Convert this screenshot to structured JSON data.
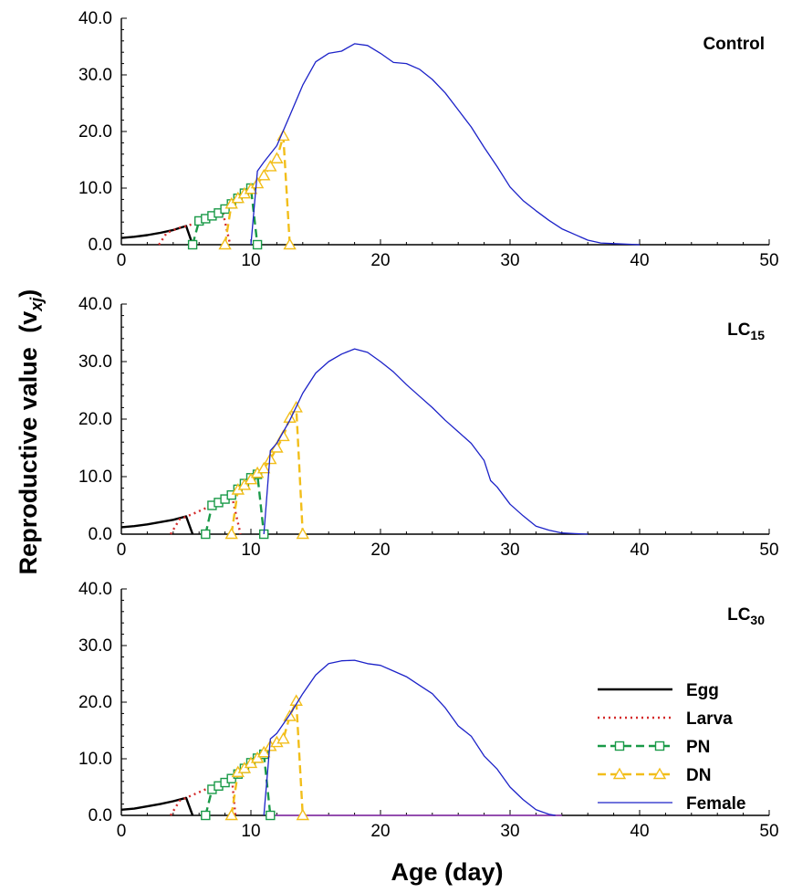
{
  "chart_data": {
    "type": "line",
    "ylabel": "Reproductive value",
    "ylabel_var": "(v",
    "ylabel_sub": "xj",
    "ylabel_close": ")",
    "xlabel": "Age (day)",
    "xlim": [
      0,
      50
    ],
    "ylim": [
      0,
      40
    ],
    "xticks": [
      "0",
      "10",
      "20",
      "30",
      "40",
      "50"
    ],
    "yticks": [
      "0.0",
      "10.0",
      "20.0",
      "30.0",
      "40.0"
    ],
    "legend": {
      "location": "lower-right of bottom panel",
      "entries": [
        "Egg",
        "Larva",
        "PN",
        "DN",
        "Female"
      ]
    },
    "series_styles": [
      {
        "name": "Egg",
        "color": "#000000",
        "dash": "solid",
        "marker": "none"
      },
      {
        "name": "Larva",
        "color": "#d42a2a",
        "dash": "dotted",
        "marker": "none"
      },
      {
        "name": "PN",
        "color": "#1a9a48",
        "dash": "dashed",
        "marker": "square"
      },
      {
        "name": "DN",
        "color": "#f2be1a",
        "dash": "dashed",
        "marker": "triangle"
      },
      {
        "name": "Female",
        "color": "#1c22c8",
        "dash": "solid",
        "marker": "none"
      }
    ],
    "panels": [
      {
        "title": "Control",
        "title_sub": "",
        "series": [
          {
            "name": "Egg",
            "x": [
              0,
              1,
              2,
              3,
              4,
              5,
              5.5
            ],
            "y": [
              1.2,
              1.4,
              1.7,
              2.1,
              2.6,
              3.3,
              0
            ]
          },
          {
            "name": "Larva",
            "x": [
              2.9,
              3.5,
              4.5,
              5.2,
              6,
              7,
              7.8,
              8.4
            ],
            "y": [
              0,
              2.1,
              3.0,
              3.4,
              4.1,
              5.2,
              6.0,
              0
            ]
          },
          {
            "name": "PN",
            "x": [
              5.5,
              6,
              6.5,
              7,
              7.5,
              8,
              8.5,
              9,
              9.5,
              10,
              10.5
            ],
            "y": [
              0,
              4.2,
              4.6,
              5.1,
              5.6,
              6.3,
              7.2,
              8.2,
              9.1,
              10.0,
              0
            ]
          },
          {
            "name": "DN",
            "x": [
              8,
              8.5,
              9,
              9.5,
              10,
              10.5,
              11,
              11.5,
              12,
              12.5,
              13
            ],
            "y": [
              0,
              7.2,
              8.2,
              9.0,
              9.8,
              10.8,
              12.2,
              13.8,
              15.2,
              19.2,
              0
            ]
          },
          {
            "name": "Female",
            "x": [
              10,
              10.5,
              11,
              12,
              13,
              14,
              15,
              16,
              17,
              18,
              19,
              20,
              21,
              22,
              23,
              24,
              25,
              26,
              27,
              28,
              29,
              30,
              31,
              32,
              33,
              34,
              35,
              36,
              37,
              38,
              39,
              40
            ],
            "y": [
              0,
              13.0,
              14.6,
              17.5,
              22.8,
              28.2,
              32.3,
              33.8,
              34.2,
              35.5,
              35.2,
              33.8,
              32.2,
              32.0,
              31.0,
              29.2,
              26.8,
              23.8,
              20.8,
              17.2,
              13.8,
              10.2,
              7.8,
              6.0,
              4.3,
              2.8,
              1.8,
              0.8,
              0.3,
              0.2,
              0.1,
              0
            ]
          }
        ]
      },
      {
        "title": "LC",
        "title_sub": "15",
        "series": [
          {
            "name": "Egg",
            "x": [
              0,
              1,
              2,
              3,
              4,
              5,
              5.5
            ],
            "y": [
              1.2,
              1.4,
              1.7,
              2.1,
              2.5,
              3.1,
              0
            ]
          },
          {
            "name": "Larva",
            "x": [
              3.8,
              4.5,
              5.5,
              6.5,
              7.5,
              8.5,
              9.2
            ],
            "y": [
              0,
              2.6,
              3.5,
              4.5,
              5.5,
              6.9,
              0
            ]
          },
          {
            "name": "PN",
            "x": [
              6.5,
              7,
              7.5,
              8,
              8.5,
              9,
              9.5,
              10,
              10.5,
              11
            ],
            "y": [
              0,
              5.0,
              5.5,
              6.1,
              6.8,
              7.8,
              8.8,
              9.8,
              10.4,
              0
            ]
          },
          {
            "name": "DN",
            "x": [
              8.5,
              9,
              9.5,
              10,
              10.5,
              11,
              11.5,
              12,
              12.5,
              13,
              13.5,
              14
            ],
            "y": [
              0,
              7.7,
              8.5,
              9.5,
              10.6,
              11.4,
              13.0,
              15.0,
              17.0,
              20.2,
              22.0,
              0
            ]
          },
          {
            "name": "Female",
            "x": [
              11,
              11.5,
              12,
              13,
              14,
              15,
              16,
              17,
              18,
              19,
              20,
              21,
              22,
              23,
              24,
              25,
              26,
              27,
              28,
              28.5,
              29,
              30,
              31,
              32,
              33,
              34,
              35,
              36
            ],
            "y": [
              0,
              14.5,
              15.8,
              19.8,
              24.5,
              28.0,
              30.0,
              31.3,
              32.2,
              31.6,
              30.0,
              28.2,
              26.0,
              24.0,
              22.0,
              19.8,
              17.8,
              15.8,
              12.8,
              9.3,
              8.2,
              5.2,
              3.2,
              1.4,
              0.7,
              0.2,
              0.1,
              0
            ]
          }
        ]
      },
      {
        "title": "LC",
        "title_sub": "30",
        "series": [
          {
            "name": "Egg",
            "x": [
              0,
              1,
              2,
              3,
              4,
              5,
              5.5
            ],
            "y": [
              1.0,
              1.2,
              1.6,
              2.0,
              2.5,
              3.1,
              0
            ]
          },
          {
            "name": "Larva",
            "x": [
              3.8,
              4.5,
              5.5,
              6.5,
              7.5,
              8.5,
              8.8
            ],
            "y": [
              0,
              2.6,
              3.6,
              4.6,
              5.6,
              7.3,
              0
            ]
          },
          {
            "name": "PN",
            "x": [
              6.5,
              7,
              7.5,
              8,
              8.5,
              9,
              9.5,
              10,
              10.5,
              11,
              11.5
            ],
            "y": [
              0,
              4.6,
              5.2,
              5.8,
              6.5,
              7.3,
              8.3,
              9.3,
              10.1,
              10.8,
              0
            ]
          },
          {
            "name": "DN",
            "x": [
              8.5,
              9,
              9.5,
              10,
              10.5,
              11,
              11.5,
              12,
              12.5,
              13,
              13.5,
              14
            ],
            "y": [
              0,
              7.6,
              8.3,
              9.2,
              10.1,
              11.1,
              12.2,
              12.9,
              13.5,
              17.5,
              20.2,
              0
            ]
          },
          {
            "name": "Female",
            "x": [
              11,
              11.5,
              12,
              13,
              14,
              15,
              16,
              17,
              18,
              19,
              20,
              21,
              22,
              23,
              24,
              25,
              26,
              27,
              28,
              29,
              30,
              31,
              32,
              33,
              33.5
            ],
            "y": [
              0,
              13.5,
              14.5,
              17.8,
              21.5,
              24.8,
              26.8,
              27.3,
              27.4,
              26.8,
              26.5,
              25.5,
              24.5,
              23.0,
              21.5,
              19.0,
              15.8,
              14.0,
              10.5,
              8.2,
              5.0,
              2.8,
              1.0,
              0.2,
              0
            ]
          }
        ],
        "baseline": {
          "x": [
            11.5,
            34
          ],
          "y": [
            0,
            0
          ],
          "color": "#9b3fbf"
        }
      }
    ]
  }
}
